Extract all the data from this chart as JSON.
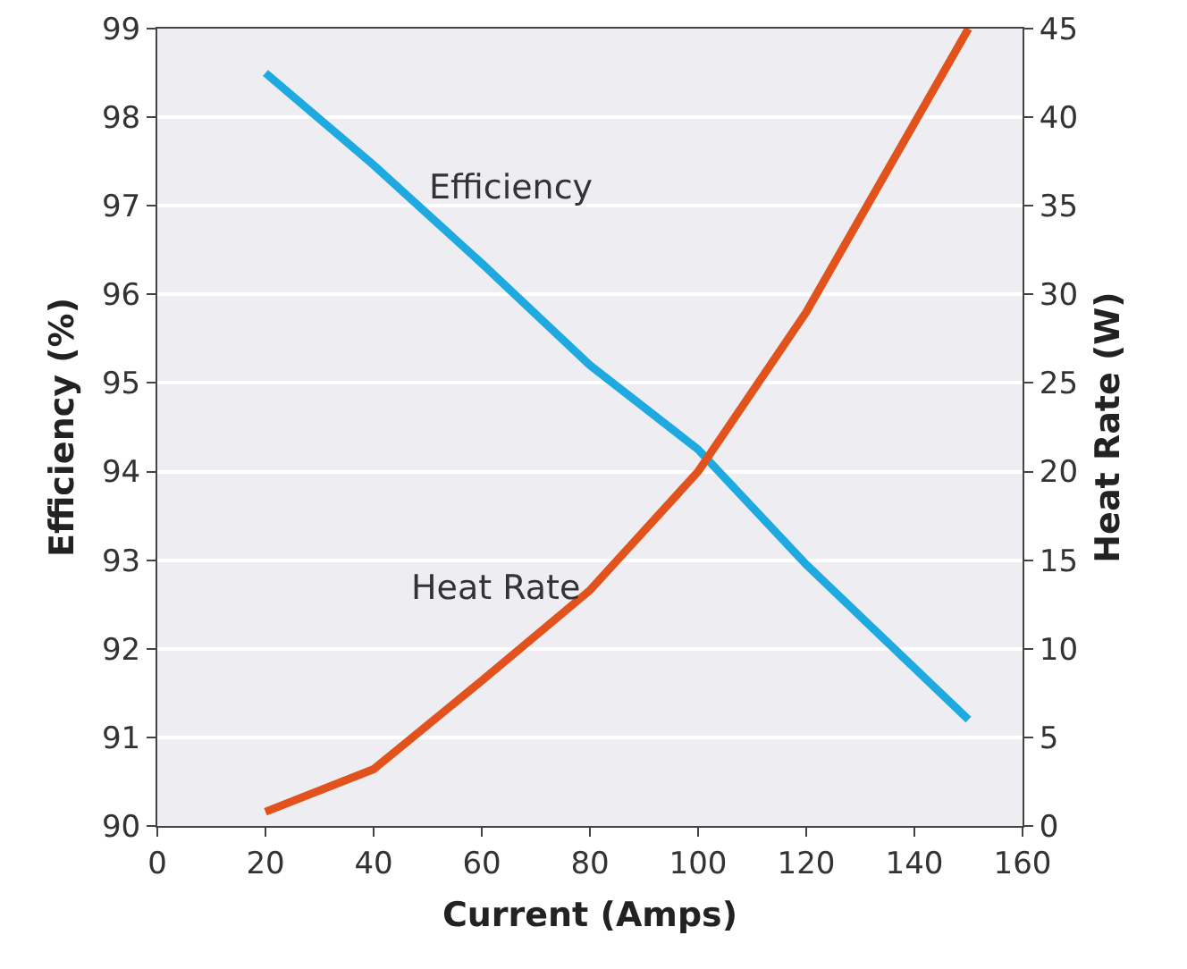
{
  "chart_data": {
    "type": "line",
    "xlabel": "Current (Amps)",
    "ylabel": "Efficiency (%)",
    "y2label": "Heat Rate (W)",
    "x": [
      20,
      40,
      60,
      80,
      100,
      120,
      150
    ],
    "series": [
      {
        "name": "Efficiency",
        "color": "#1ea9e1",
        "values": [
          98.5,
          97.46,
          96.35,
          95.2,
          94.25,
          92.95,
          91.2
        ]
      },
      {
        "name": "Heat Rate",
        "color": "#e2521d",
        "axis": "y2",
        "values": [
          0.8,
          3.2,
          8.2,
          13.3,
          20,
          29,
          45
        ]
      }
    ],
    "xlim": [
      0,
      160
    ],
    "xticks": [
      0,
      20,
      40,
      60,
      80,
      100,
      120,
      140,
      160
    ],
    "ylim": [
      90,
      99
    ],
    "yticks": [
      90,
      91,
      92,
      93,
      94,
      95,
      96,
      97,
      98,
      99
    ],
    "y2lim": [
      0,
      45
    ],
    "y2ticks": [
      0,
      5,
      10,
      15,
      20,
      25,
      30,
      35,
      40,
      45
    ],
    "grid": "y",
    "legend": false,
    "line_style": "solid",
    "marker": "none"
  }
}
